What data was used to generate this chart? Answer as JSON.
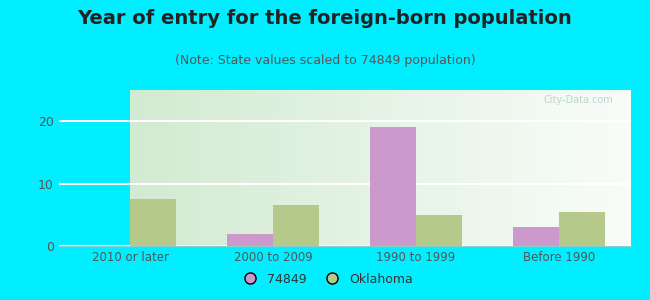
{
  "title": "Year of entry for the foreign-born population",
  "subtitle": "(Note: State values scaled to 74849 population)",
  "categories": [
    "2010 or later",
    "2000 to 2009",
    "1990 to 1999",
    "Before 1990"
  ],
  "values_74849": [
    0,
    2,
    19,
    3
  ],
  "values_oklahoma": [
    7.5,
    6.5,
    5,
    5.5
  ],
  "bar_color_74849": "#cc99cc",
  "bar_color_oklahoma": "#b5c98a",
  "background_outer": "#00eeff",
  "background_plot_top": "#f0f8f0",
  "background_plot_bottom": "#d4ecd4",
  "ylim": [
    0,
    25
  ],
  "yticks": [
    0,
    10,
    20
  ],
  "legend_labels": [
    "74849",
    "Oklahoma"
  ],
  "bar_width": 0.32,
  "title_fontsize": 14,
  "subtitle_fontsize": 9,
  "title_color": "#222222",
  "subtitle_color": "#555555",
  "tick_color": "#555555",
  "grid_color": "#ffffff",
  "watermark": "City-Data.com"
}
